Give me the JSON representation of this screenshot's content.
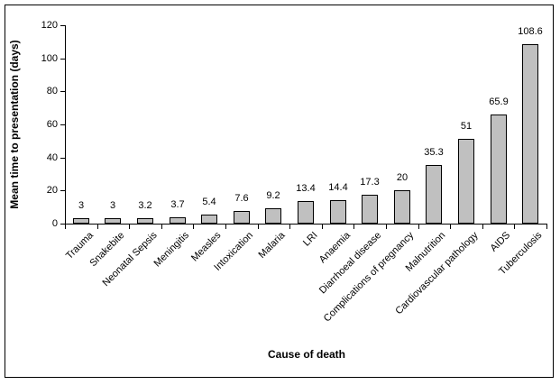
{
  "chart_data": {
    "type": "bar",
    "title": "",
    "xlabel": "Cause of death",
    "ylabel": "Mean time to presentation (days)",
    "ylim": [
      0,
      120
    ],
    "ytick_step": 20,
    "grid": false,
    "legend": "none",
    "bar_fill_color": "#c0c0c0",
    "bar_border_color": "#000000",
    "categories": [
      "Trauma",
      "Snakebite",
      "Neonatal Sepsis",
      "Meningitis",
      "Measles",
      "Intoxication",
      "Malaria",
      "LRI",
      "Anaemia",
      "Diarrhoeal disease",
      "Complications of pregnancy",
      "Malnutrition",
      "Cardiovascular pathology",
      "AIDS",
      "Tuberculosis"
    ],
    "values": [
      3,
      3,
      3.2,
      3.7,
      5.4,
      7.6,
      9.2,
      13.4,
      14.4,
      17.3,
      20,
      35.3,
      51,
      65.9,
      108.6
    ],
    "value_labels": [
      "3",
      "3",
      "3.2",
      "3.7",
      "5.4",
      "7.6",
      "9.2",
      "13.4",
      "14.4",
      "17.3",
      "20",
      "35.3",
      "51",
      "65.9",
      "108.6"
    ]
  }
}
